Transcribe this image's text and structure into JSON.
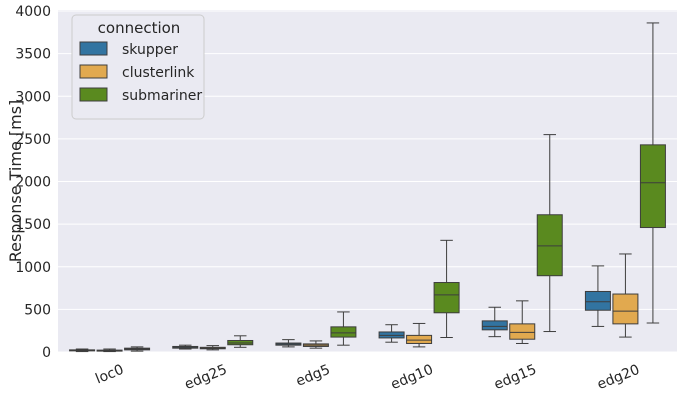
{
  "chart_data": {
    "type": "box",
    "title": "",
    "xlabel": "",
    "ylabel": "Response Time [ms]",
    "ylim": [
      0,
      4000
    ],
    "yticks": [
      0,
      500,
      1000,
      1500,
      2000,
      2500,
      3000,
      3500,
      4000
    ],
    "grid": true,
    "categories": [
      "loc0",
      "edg25",
      "edg5",
      "edg10",
      "edg15",
      "edg20"
    ],
    "legend": {
      "title": "connection",
      "position": "top-left"
    },
    "series": [
      {
        "name": "skupper",
        "color": "#3274a1",
        "boxes": [
          {
            "whislo": 5,
            "q1": 15,
            "med": 20,
            "q3": 25,
            "whishi": 35
          },
          {
            "whislo": 35,
            "q1": 45,
            "med": 55,
            "q3": 65,
            "whishi": 80
          },
          {
            "whislo": 60,
            "q1": 80,
            "med": 92,
            "q3": 105,
            "whishi": 145
          },
          {
            "whislo": 115,
            "q1": 165,
            "med": 195,
            "q3": 235,
            "whishi": 320
          },
          {
            "whislo": 180,
            "q1": 260,
            "med": 300,
            "q3": 365,
            "whishi": 525
          },
          {
            "whislo": 300,
            "q1": 490,
            "med": 590,
            "q3": 710,
            "whishi": 1010
          }
        ]
      },
      {
        "name": "clusterlink",
        "color": "#e1a94f",
        "boxes": [
          {
            "whislo": 5,
            "q1": 12,
            "med": 18,
            "q3": 22,
            "whishi": 35
          },
          {
            "whislo": 25,
            "q1": 38,
            "med": 45,
            "q3": 55,
            "whishi": 75
          },
          {
            "whislo": 45,
            "q1": 65,
            "med": 80,
            "q3": 95,
            "whishi": 130
          },
          {
            "whislo": 60,
            "q1": 100,
            "med": 140,
            "q3": 195,
            "whishi": 335
          },
          {
            "whislo": 100,
            "q1": 150,
            "med": 230,
            "q3": 330,
            "whishi": 600
          },
          {
            "whislo": 175,
            "q1": 330,
            "med": 480,
            "q3": 680,
            "whishi": 1150
          }
        ]
      },
      {
        "name": "submariner",
        "color": "#5a8a1f",
        "boxes": [
          {
            "whislo": 10,
            "q1": 25,
            "med": 35,
            "q3": 45,
            "whishi": 60
          },
          {
            "whislo": 55,
            "q1": 85,
            "med": 105,
            "q3": 135,
            "whishi": 190
          },
          {
            "whislo": 80,
            "q1": 175,
            "med": 225,
            "q3": 295,
            "whishi": 470
          },
          {
            "whislo": 170,
            "q1": 460,
            "med": 670,
            "q3": 815,
            "whishi": 1310
          },
          {
            "whislo": 240,
            "q1": 895,
            "med": 1245,
            "q3": 1610,
            "whishi": 2550
          },
          {
            "whislo": 340,
            "q1": 1460,
            "med": 1985,
            "q3": 2430,
            "whishi": 3860
          }
        ]
      }
    ]
  }
}
